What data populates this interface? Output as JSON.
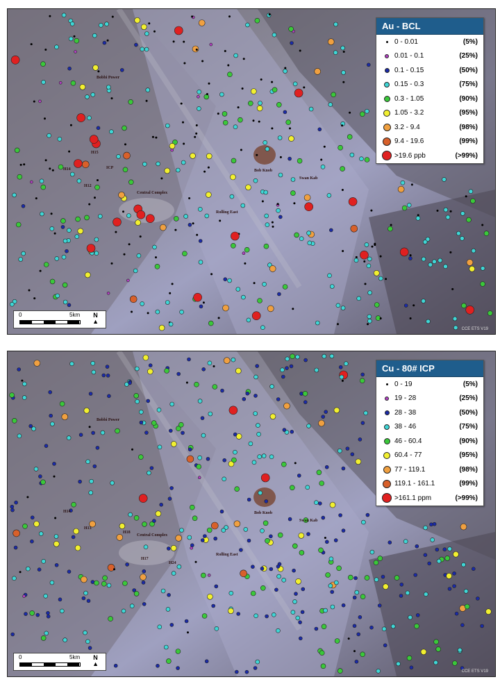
{
  "panels": [
    {
      "id": "au",
      "legend_title": "Au - BCL",
      "classes": [
        {
          "range": "0 - 0.01",
          "pct": "(5%)",
          "color": "#000000",
          "size": 3
        },
        {
          "range": "0.01 - 0.1",
          "pct": "(25%)",
          "color": "#b040c0",
          "size": 4
        },
        {
          "range": "0.1 - 0.15",
          "pct": "(50%)",
          "color": "#1a2aa8",
          "size": 5
        },
        {
          "range": "0.15 - 0.3",
          "pct": "(75%)",
          "color": "#3fd6d6",
          "size": 6
        },
        {
          "range": "0.3 - 1.05",
          "pct": "(90%)",
          "color": "#3ac83a",
          "size": 7
        },
        {
          "range": "1.05 - 3.2",
          "pct": "(95%)",
          "color": "#f2f030",
          "size": 8
        },
        {
          "range": "3.2 - 9.4",
          "pct": "(98%)",
          "color": "#f0a040",
          "size": 9
        },
        {
          "range": "9.4 - 19.6",
          "pct": "(99%)",
          "color": "#d8602a",
          "size": 10
        },
        {
          "range": ">19.6 ppb",
          "pct": "(>99%)",
          "color": "#e02020",
          "size": 12
        }
      ]
    },
    {
      "id": "cu",
      "legend_title": "Cu - 80# ICP",
      "classes": [
        {
          "range": "0 - 19",
          "pct": "(5%)",
          "color": "#000000",
          "size": 3
        },
        {
          "range": "19 - 28",
          "pct": "(25%)",
          "color": "#b040c0",
          "size": 4
        },
        {
          "range": "28 - 38",
          "pct": "(50%)",
          "color": "#1a2aa8",
          "size": 5
        },
        {
          "range": "38 - 46",
          "pct": "(75%)",
          "color": "#3fd6d6",
          "size": 6
        },
        {
          "range": "46 - 60.4",
          "pct": "(90%)",
          "color": "#3ac83a",
          "size": 7
        },
        {
          "range": "60.4 - 77",
          "pct": "(95%)",
          "color": "#f2f030",
          "size": 8
        },
        {
          "range": "77 - 119.1",
          "pct": "(98%)",
          "color": "#f0a040",
          "size": 9
        },
        {
          "range": "119.1 - 161.1",
          "pct": "(99%)",
          "color": "#d8602a",
          "size": 10
        },
        {
          "range": ">161.1 ppm",
          "pct": "(>99%)",
          "color": "#e02020",
          "size": 12
        }
      ]
    }
  ],
  "scalebar": {
    "zero": "0",
    "five": "5km",
    "north": "N"
  },
  "places": [
    "Bobbi Power",
    "Central Complex",
    "Bob Knob",
    "Swan Kab",
    "Rolling East",
    "H14",
    "H12",
    "H13",
    "H15",
    "ICP",
    "H17",
    "H18",
    "H24"
  ],
  "credit": "CCE ETS V19"
}
